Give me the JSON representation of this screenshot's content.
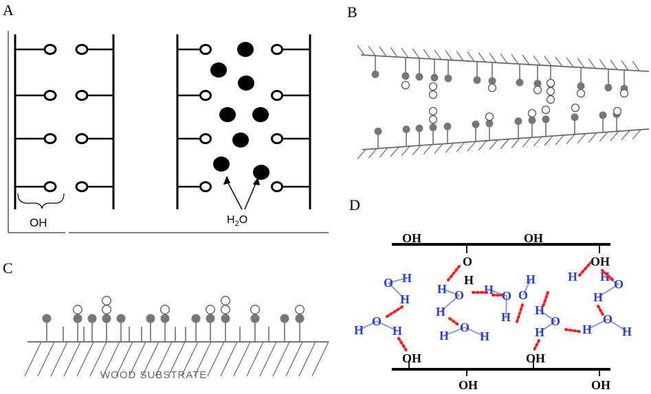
{
  "panels": {
    "a": {
      "label": "A",
      "oh_label": "OH",
      "h2o_label_main": "H",
      "h2o_label_sub": "2",
      "h2o_label_tail": "O"
    },
    "b": {
      "label": "B"
    },
    "c": {
      "label": "C",
      "substrate_label": "WOOD SUBSTRATE"
    },
    "d": {
      "label": "D",
      "oh_text": "OH",
      "o_text": "O",
      "h_text": "H"
    }
  },
  "colors": {
    "line": "#000000",
    "gray_fill": "#777777",
    "gray_line": "#666666",
    "hbond": "#ff1a1a",
    "water_blue": "#2b3fd6",
    "water_bond": "#8a96e0"
  }
}
